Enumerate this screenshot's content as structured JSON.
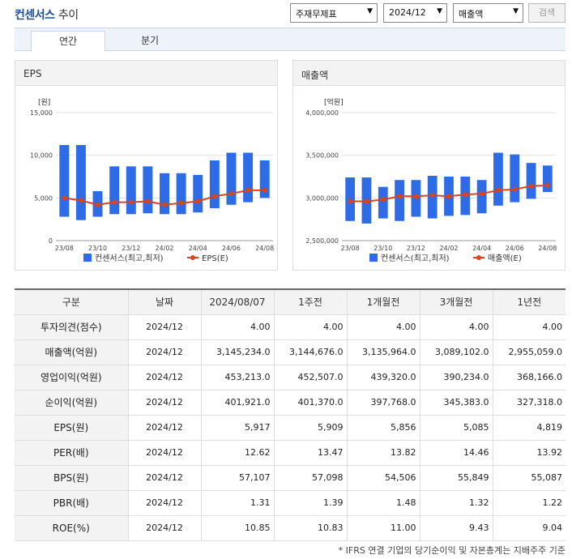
{
  "header": {
    "title_main": "컨센서스",
    "title_suffix": "추이",
    "select_type": "주재무제표",
    "select_period": "2024/12",
    "select_metric": "매출액",
    "search_label": "검색"
  },
  "tabs": [
    {
      "label": "연간"
    },
    {
      "label": "분기"
    }
  ],
  "charts": {
    "eps": {
      "title": "EPS",
      "unit": "[원]",
      "legend_bar": "컨센서스(최고,최저)",
      "legend_line": "EPS(E)"
    },
    "revenue": {
      "title": "매출액",
      "unit": "[억원]",
      "legend_bar": "컨센서스(최고,최저)",
      "legend_line": "매출액(E)"
    }
  },
  "chart_data": [
    {
      "type": "bar",
      "title": "EPS",
      "ylabel": "[원]",
      "ylim": [
        0,
        15000
      ],
      "yticks": [
        "15,000",
        "10,000",
        "5,000",
        "0"
      ],
      "ytick_values": [
        15000,
        10000,
        5000,
        0
      ],
      "x_tick_labels": [
        "23/08",
        "23/10",
        "23/12",
        "24/02",
        "24/04",
        "24/06",
        "24/08"
      ],
      "categories": [
        "23/08",
        "23/09",
        "23/10",
        "23/11",
        "23/12",
        "24/01",
        "24/02",
        "24/03",
        "24/04",
        "24/05",
        "24/06",
        "24/07",
        "24/08"
      ],
      "series": [
        {
          "name": "컨센서스(최고,최저)",
          "type": "range",
          "high": [
            11200,
            11200,
            5800,
            8700,
            8700,
            8700,
            7900,
            7900,
            7700,
            9400,
            10300,
            10300,
            9400
          ],
          "low": [
            2800,
            2400,
            2800,
            3100,
            3100,
            3200,
            3100,
            3100,
            3300,
            3800,
            4200,
            4500,
            5000
          ]
        },
        {
          "name": "EPS(E)",
          "type": "line",
          "values": [
            5000,
            4700,
            4200,
            4500,
            4500,
            4600,
            4200,
            4400,
            4600,
            5200,
            5500,
            5900,
            5900
          ]
        }
      ],
      "colors": {
        "bar": "#2e6be6",
        "line": "#d9441c"
      },
      "legend": "bottom",
      "grid": true
    },
    {
      "type": "bar",
      "title": "매출액",
      "ylabel": "[억원]",
      "ylim": [
        2500000,
        4000000
      ],
      "yticks": [
        "4,000,000",
        "3,500,000",
        "3,000,000",
        "2,500,000"
      ],
      "ytick_values": [
        4000000,
        3500000,
        3000000,
        2500000
      ],
      "x_tick_labels": [
        "23/08",
        "23/10",
        "23/12",
        "24/02",
        "24/04",
        "24/06",
        "24/08"
      ],
      "categories": [
        "23/08",
        "23/09",
        "23/10",
        "23/11",
        "23/12",
        "24/01",
        "24/02",
        "24/03",
        "24/04",
        "24/05",
        "24/06",
        "24/07",
        "24/08"
      ],
      "series": [
        {
          "name": "컨센서스(최고,최저)",
          "type": "range",
          "high": [
            3240000,
            3240000,
            3130000,
            3210000,
            3210000,
            3260000,
            3250000,
            3250000,
            3210000,
            3530000,
            3510000,
            3410000,
            3380000
          ],
          "low": [
            2730000,
            2700000,
            2760000,
            2730000,
            2780000,
            2760000,
            2790000,
            2800000,
            2820000,
            2910000,
            2950000,
            2990000,
            3070000
          ]
        },
        {
          "name": "매출액(E)",
          "type": "line",
          "values": [
            2960000,
            2960000,
            2980000,
            3020000,
            3020000,
            3030000,
            3020000,
            3040000,
            3050000,
            3090000,
            3100000,
            3140000,
            3145234
          ]
        }
      ],
      "colors": {
        "bar": "#2e6be6",
        "line": "#d9441c"
      },
      "legend": "bottom",
      "grid": true
    }
  ],
  "table": {
    "headers": [
      "구분",
      "날짜",
      "2024/08/07",
      "1주전",
      "1개월전",
      "3개월전",
      "1년전"
    ],
    "rows": [
      {
        "label": "투자의견(점수)",
        "date": "2024/12",
        "values": [
          "4.00",
          "4.00",
          "4.00",
          "4.00",
          "4.00"
        ]
      },
      {
        "label": "매출액(억원)",
        "date": "2024/12",
        "values": [
          "3,145,234.0",
          "3,144,676.0",
          "3,135,964.0",
          "3,089,102.0",
          "2,955,059.0"
        ]
      },
      {
        "label": "영업이익(억원)",
        "date": "2024/12",
        "values": [
          "453,213.0",
          "452,507.0",
          "439,320.0",
          "390,234.0",
          "368,166.0"
        ]
      },
      {
        "label": "순이익(억원)",
        "date": "2024/12",
        "values": [
          "401,921.0",
          "401,370.0",
          "397,768.0",
          "345,383.0",
          "327,318.0"
        ]
      },
      {
        "label": "EPS(원)",
        "date": "2024/12",
        "values": [
          "5,917",
          "5,909",
          "5,856",
          "5,085",
          "4,819"
        ]
      },
      {
        "label": "PER(배)",
        "date": "2024/12",
        "values": [
          "12.62",
          "13.47",
          "13.82",
          "14.46",
          "13.92"
        ]
      },
      {
        "label": "BPS(원)",
        "date": "2024/12",
        "values": [
          "57,107",
          "57,098",
          "54,506",
          "55,849",
          "55,087"
        ]
      },
      {
        "label": "PBR(배)",
        "date": "2024/12",
        "values": [
          "1.31",
          "1.39",
          "1.48",
          "1.32",
          "1.22"
        ]
      },
      {
        "label": "ROE(%)",
        "date": "2024/12",
        "values": [
          "10.85",
          "10.83",
          "11.00",
          "9.43",
          "9.04"
        ]
      }
    ]
  },
  "footnote": "* IFRS 연결 기업의 당기순이익 및 자본총계는 지배주주 기준"
}
